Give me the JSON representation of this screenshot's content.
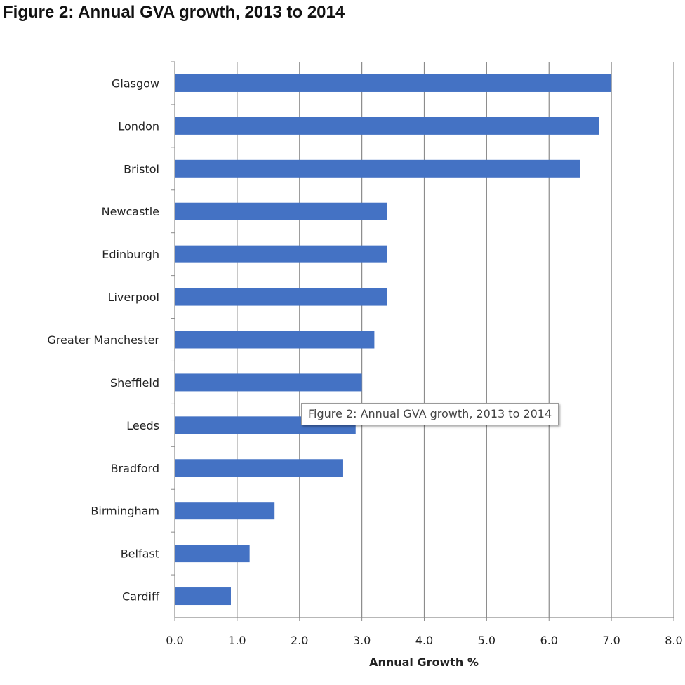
{
  "page": {
    "title": "Figure 2: Annual GVA growth, 2013 to 2014",
    "tooltip": "Figure 2: Annual GVA growth, 2013 to 2014"
  },
  "chart_data": {
    "type": "bar",
    "orientation": "horizontal",
    "title": "Figure 2: Annual GVA growth, 2013 to 2014",
    "xlabel": "Annual Growth %",
    "ylabel": "",
    "categories": [
      "Glasgow",
      "London",
      "Bristol",
      "Newcastle",
      "Edinburgh",
      "Liverpool",
      "Greater Manchester",
      "Sheffield",
      "Leeds",
      "Bradford",
      "Birmingham",
      "Belfast",
      "Cardiff"
    ],
    "values": [
      7.0,
      6.8,
      6.5,
      3.4,
      3.4,
      3.4,
      3.2,
      3.0,
      2.9,
      2.7,
      1.6,
      1.2,
      0.9
    ],
    "xlim": [
      0,
      8
    ],
    "xticks": [
      "0.0",
      "1.0",
      "2.0",
      "3.0",
      "4.0",
      "5.0",
      "6.0",
      "7.0",
      "8.0"
    ],
    "grid": "vertical",
    "bar_color": "#4472C4",
    "legend": "none"
  }
}
